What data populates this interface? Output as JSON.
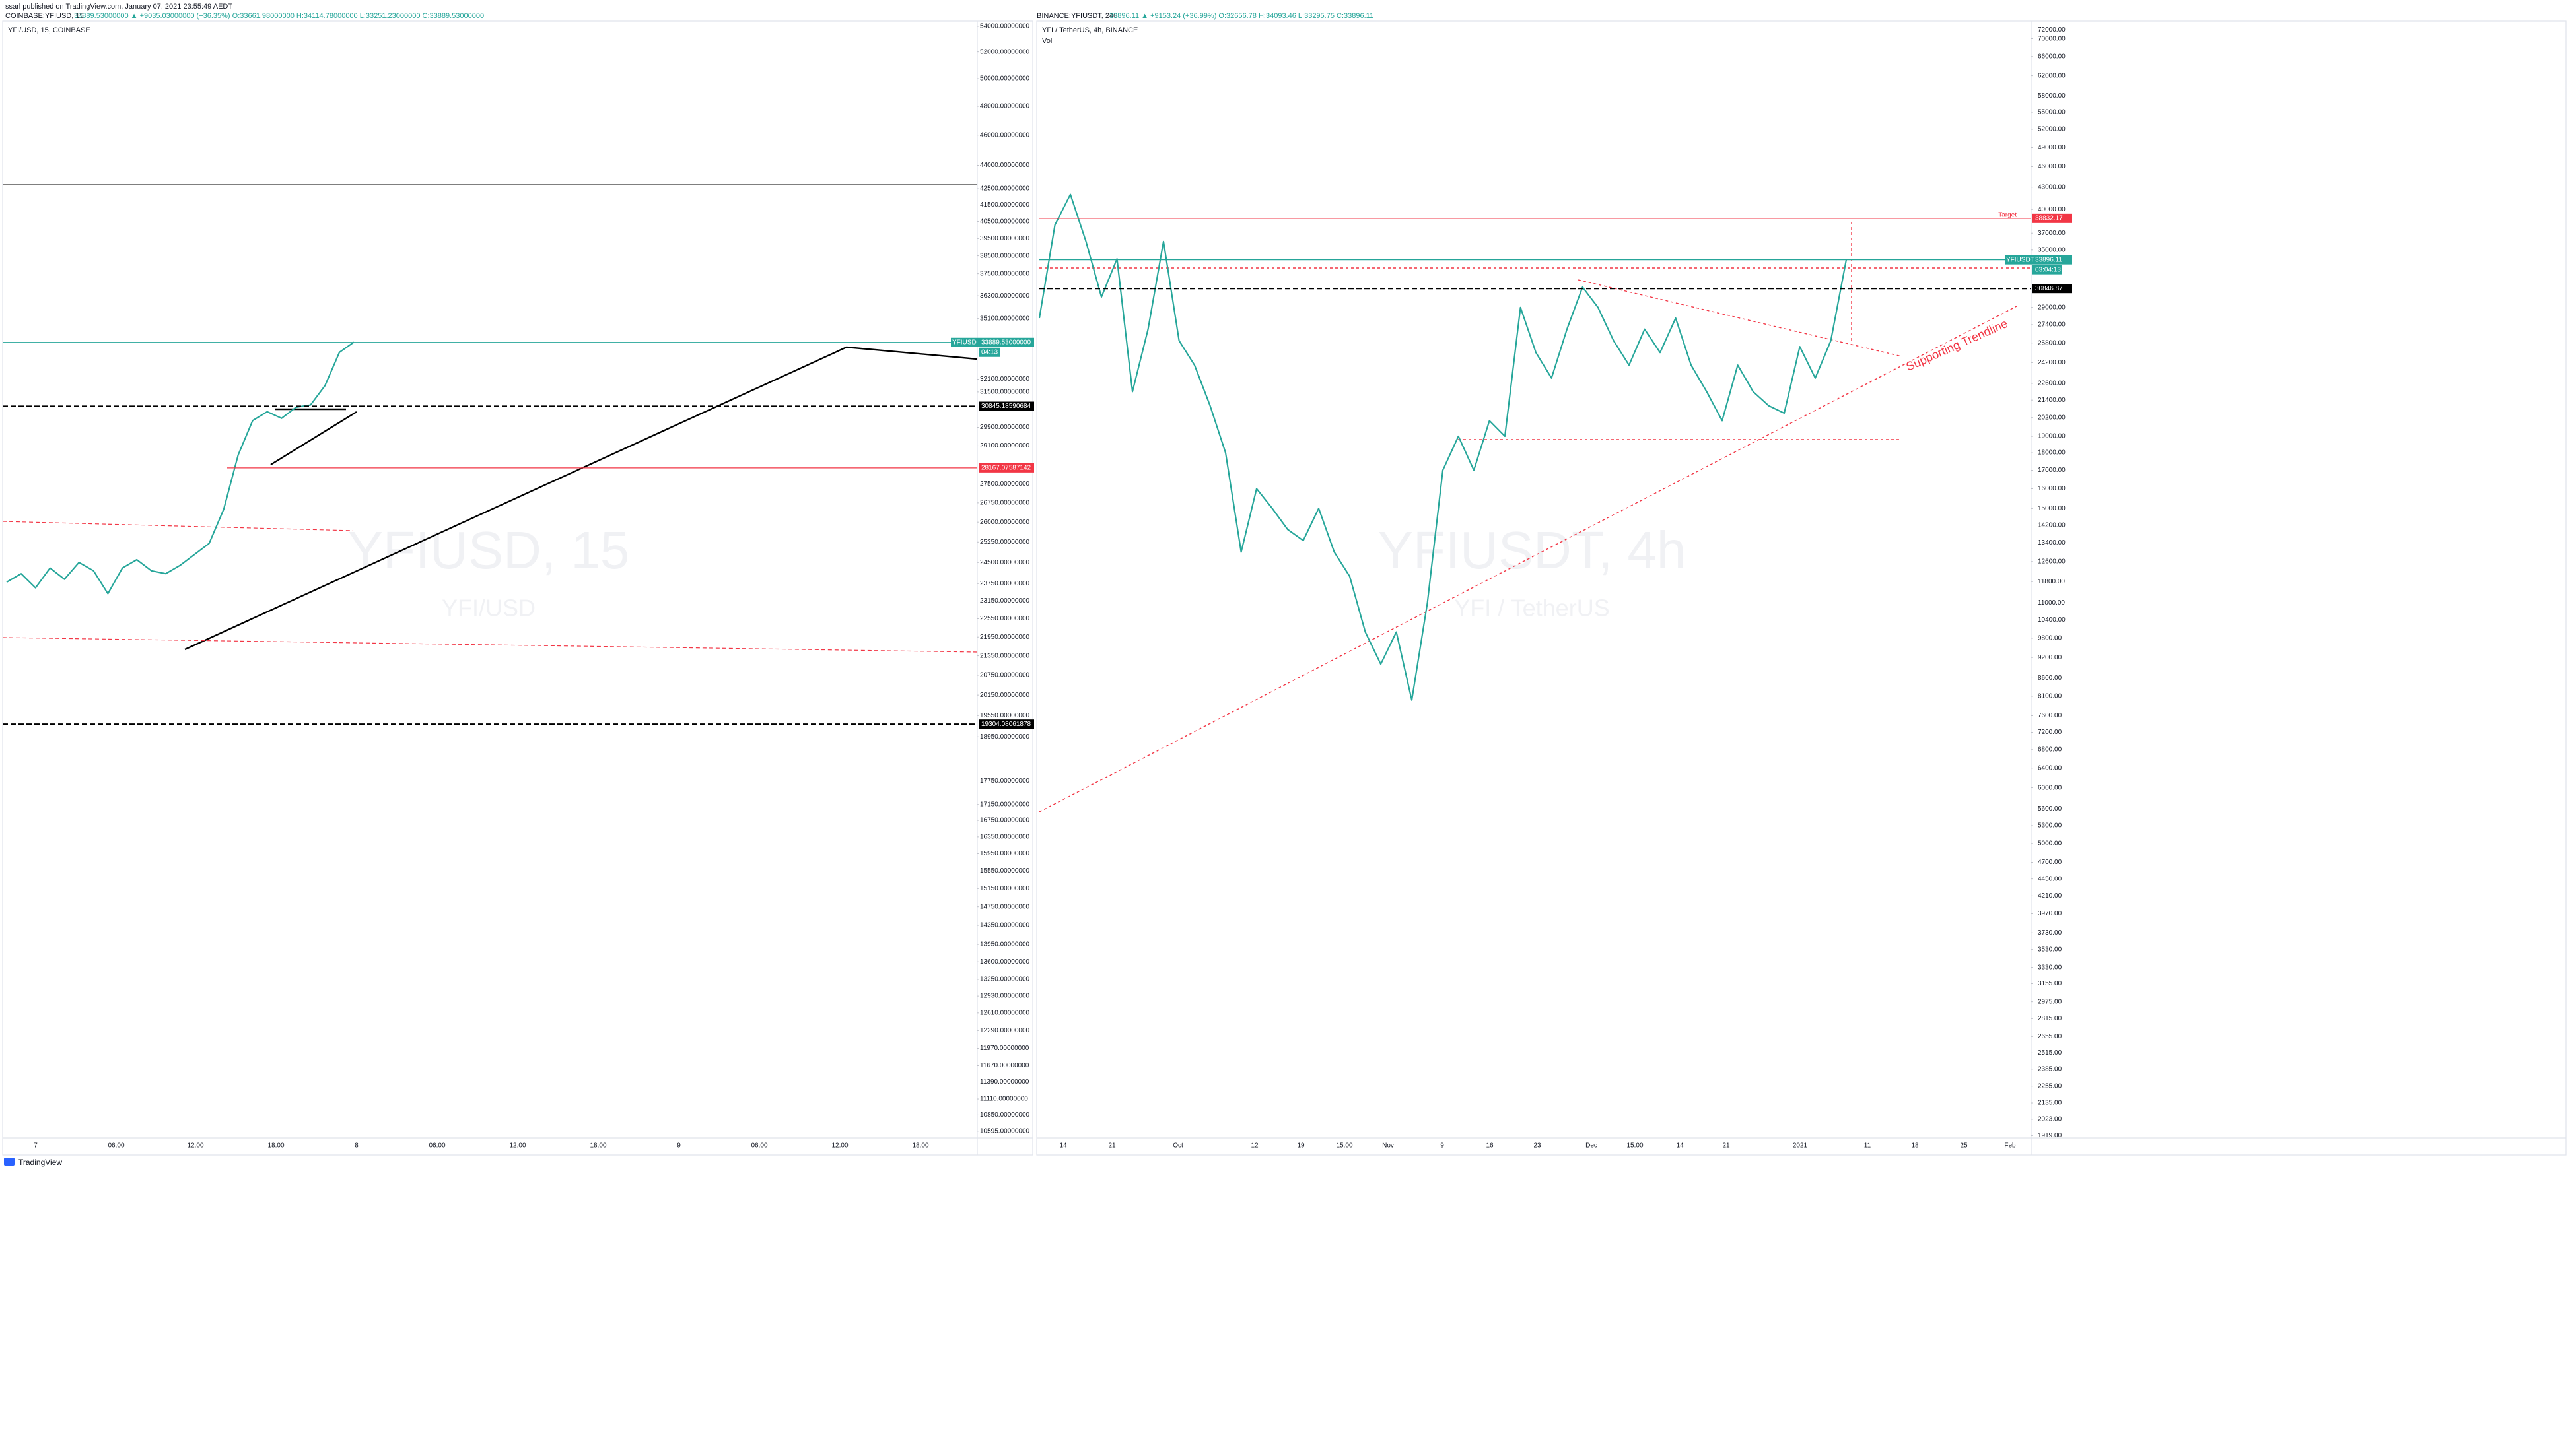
{
  "header": {
    "publisher": "ssarl published on TradingView.com, January 07, 2021 23:55:49 AEDT"
  },
  "left_panel": {
    "symbol": "COINBASE:YFIUSD, 15",
    "quote": "33889.53000000 ▲ +9035.03000000 (+36.35%) O:33661.98000000 H:34114.78000000 L:33251.23000000 C:33889.53000000",
    "title": "YFI/USD, 15, COINBASE",
    "watermark": "YFIUSD, 15",
    "watermark_sub": "YFI/USD",
    "price_ticks": [
      {
        "value": 54000,
        "label": "54000.00000000"
      },
      {
        "value": 52000,
        "label": "52000.00000000"
      },
      {
        "value": 50000,
        "label": "50000.00000000"
      },
      {
        "value": 48000,
        "label": "48000.00000000"
      },
      {
        "value": 46000,
        "label": "46000.00000000"
      },
      {
        "value": 44000,
        "label": "44000.00000000"
      },
      {
        "value": 42500,
        "label": "42500.00000000"
      },
      {
        "value": 41500,
        "label": "41500.00000000"
      },
      {
        "value": 40500,
        "label": "40500.00000000"
      },
      {
        "value": 39500,
        "label": "39500.00000000"
      },
      {
        "value": 38500,
        "label": "38500.00000000"
      },
      {
        "value": 37500,
        "label": "37500.00000000"
      },
      {
        "value": 36300,
        "label": "36300.00000000"
      },
      {
        "value": 35100,
        "label": "35100.00000000"
      },
      {
        "value": 32100,
        "label": "32100.00000000"
      },
      {
        "value": 31500,
        "label": "31500.00000000"
      },
      {
        "value": 29900,
        "label": "29900.00000000"
      },
      {
        "value": 29100,
        "label": "29100.00000000"
      },
      {
        "value": 27500,
        "label": "27500.00000000"
      },
      {
        "value": 26750,
        "label": "26750.00000000"
      },
      {
        "value": 26000,
        "label": "26000.00000000"
      },
      {
        "value": 25250,
        "label": "25250.00000000"
      },
      {
        "value": 24500,
        "label": "24500.00000000"
      },
      {
        "value": 23750,
        "label": "23750.00000000"
      },
      {
        "value": 23150,
        "label": "23150.00000000"
      },
      {
        "value": 22550,
        "label": "22550.00000000"
      },
      {
        "value": 21950,
        "label": "21950.00000000"
      },
      {
        "value": 21350,
        "label": "21350.00000000"
      },
      {
        "value": 20750,
        "label": "20750.00000000"
      },
      {
        "value": 20150,
        "label": "20150.00000000"
      },
      {
        "value": 19550,
        "label": "19550.00000000"
      },
      {
        "value": 18950,
        "label": "18950.00000000"
      },
      {
        "value": 17750,
        "label": "17750.00000000"
      },
      {
        "value": 17150,
        "label": "17150.00000000"
      },
      {
        "value": 16750,
        "label": "16750.00000000"
      },
      {
        "value": 16350,
        "label": "16350.00000000"
      },
      {
        "value": 15950,
        "label": "15950.00000000"
      },
      {
        "value": 15550,
        "label": "15550.00000000"
      },
      {
        "value": 15150,
        "label": "15150.00000000"
      },
      {
        "value": 14750,
        "label": "14750.00000000"
      },
      {
        "value": 14350,
        "label": "14350.00000000"
      },
      {
        "value": 13950,
        "label": "13950.00000000"
      },
      {
        "value": 13600,
        "label": "13600.00000000"
      },
      {
        "value": 13250,
        "label": "13250.00000000"
      },
      {
        "value": 12930,
        "label": "12930.00000000"
      },
      {
        "value": 12610,
        "label": "12610.00000000"
      },
      {
        "value": 12290,
        "label": "12290.00000000"
      },
      {
        "value": 11970,
        "label": "11970.00000000"
      },
      {
        "value": 11670,
        "label": "11670.00000000"
      },
      {
        "value": 11390,
        "label": "11390.00000000"
      },
      {
        "value": 11110,
        "label": "11110.00000000"
      },
      {
        "value": 10850,
        "label": "10850.00000000"
      },
      {
        "value": 10595,
        "label": "10595.00000000"
      }
    ],
    "price_labels": [
      {
        "value": 33889.53,
        "label": "33889.53000000",
        "tag": "YFIUSD",
        "timer": "04:13",
        "color": "#26a69a"
      },
      {
        "value": 30845.18590684,
        "label": "30845.18590684",
        "color": "#000000"
      },
      {
        "value": 28167.07587142,
        "label": "28167.07587142",
        "color": "#f23645"
      },
      {
        "value": 19304.08061878,
        "label": "19304.08061878",
        "color": "#000000"
      }
    ],
    "time_ticks": [
      "7",
      "06:00",
      "12:00",
      "18:00",
      "8",
      "06:00",
      "12:00",
      "18:00",
      "9",
      "06:00",
      "12:00",
      "18:00"
    ],
    "closes": [
      23800,
      24100,
      23600,
      24300,
      23900,
      24500,
      24200,
      23400,
      24300,
      24600,
      24200,
      24100,
      24400,
      24800,
      25200,
      26500,
      28700,
      30200,
      30600,
      30300,
      30800,
      30900,
      31800,
      33400,
      33900
    ]
  },
  "right_panel": {
    "symbol": "BINANCE:YFIUSDT, 240",
    "quote": "33896.11 ▲ +9153.24 (+36.99%) O:32656.78 H:34093.46 L:33295.75 C:33896.11",
    "title": "YFI / TetherUS, 4h, BINANCE",
    "volume_label": "Vol",
    "watermark": "YFIUSDT, 4h",
    "watermark_sub": "YFI / TetherUS",
    "target": "Target",
    "trendline": "Supporting Trendline",
    "price_ticks": [
      {
        "value": 72000,
        "label": "72000.00"
      },
      {
        "value": 70000,
        "label": "70000.00"
      },
      {
        "value": 66000,
        "label": "66000.00"
      },
      {
        "value": 62000,
        "label": "62000.00"
      },
      {
        "value": 58000,
        "label": "58000.00"
      },
      {
        "value": 55000,
        "label": "55000.00"
      },
      {
        "value": 52000,
        "label": "52000.00"
      },
      {
        "value": 49000,
        "label": "49000.00"
      },
      {
        "value": 46000,
        "label": "46000.00"
      },
      {
        "value": 43000,
        "label": "43000.00"
      },
      {
        "value": 40000,
        "label": "40000.00"
      },
      {
        "value": 37000,
        "label": "37000.00"
      },
      {
        "value": 35000,
        "label": "35000.00"
      },
      {
        "value": 29000,
        "label": "29000.00"
      },
      {
        "value": 27400,
        "label": "27400.00"
      },
      {
        "value": 25800,
        "label": "25800.00"
      },
      {
        "value": 24200,
        "label": "24200.00"
      },
      {
        "value": 22600,
        "label": "22600.00"
      },
      {
        "value": 21400,
        "label": "21400.00"
      },
      {
        "value": 20200,
        "label": "20200.00"
      },
      {
        "value": 19000,
        "label": "19000.00"
      },
      {
        "value": 18000,
        "label": "18000.00"
      },
      {
        "value": 17000,
        "label": "17000.00"
      },
      {
        "value": 16000,
        "label": "16000.00"
      },
      {
        "value": 15000,
        "label": "15000.00"
      },
      {
        "value": 14200,
        "label": "14200.00"
      },
      {
        "value": 13400,
        "label": "13400.00"
      },
      {
        "value": 12600,
        "label": "12600.00"
      },
      {
        "value": 11800,
        "label": "11800.00"
      },
      {
        "value": 11000,
        "label": "11000.00"
      },
      {
        "value": 10400,
        "label": "10400.00"
      },
      {
        "value": 9800,
        "label": "9800.00"
      },
      {
        "value": 9200,
        "label": "9200.00"
      },
      {
        "value": 8600,
        "label": "8600.00"
      },
      {
        "value": 8100,
        "label": "8100.00"
      },
      {
        "value": 7600,
        "label": "7600.00"
      },
      {
        "value": 7200,
        "label": "7200.00"
      },
      {
        "value": 6800,
        "label": "6800.00"
      },
      {
        "value": 6400,
        "label": "6400.00"
      },
      {
        "value": 6000,
        "label": "6000.00"
      },
      {
        "value": 5600,
        "label": "5600.00"
      },
      {
        "value": 5300,
        "label": "5300.00"
      },
      {
        "value": 5000,
        "label": "5000.00"
      },
      {
        "value": 4700,
        "label": "4700.00"
      },
      {
        "value": 4450,
        "label": "4450.00"
      },
      {
        "value": 4210,
        "label": "4210.00"
      },
      {
        "value": 3970,
        "label": "3970.00"
      },
      {
        "value": 3730,
        "label": "3730.00"
      },
      {
        "value": 3530,
        "label": "3530.00"
      },
      {
        "value": 3330,
        "label": "3330.00"
      },
      {
        "value": 3155,
        "label": "3155.00"
      },
      {
        "value": 2975,
        "label": "2975.00"
      },
      {
        "value": 2815,
        "label": "2815.00"
      },
      {
        "value": 2655,
        "label": "2655.00"
      },
      {
        "value": 2515,
        "label": "2515.00"
      },
      {
        "value": 2385,
        "label": "2385.00"
      },
      {
        "value": 2255,
        "label": "2255.00"
      },
      {
        "value": 2135,
        "label": "2135.00"
      },
      {
        "value": 2023,
        "label": "2023.00"
      },
      {
        "value": 1919,
        "label": "1919.00"
      }
    ],
    "price_labels": [
      {
        "value": 38832.17,
        "label": "38832.17",
        "color": "#f23645"
      },
      {
        "value": 33896.11,
        "label": "33896.11",
        "tag": "YFIUSDT",
        "timer": "03:04:13",
        "color": "#26a69a"
      },
      {
        "value": 30846.87,
        "label": "30846.87",
        "color": "#000000"
      }
    ],
    "time_ticks": [
      "14",
      "21",
      "Oct",
      "12",
      "19",
      "15:00",
      "Nov",
      "9",
      "16",
      "23",
      "Dec",
      "15:00",
      "14",
      "21",
      "2021",
      "11",
      "18",
      "25",
      "Feb"
    ],
    "closes": [
      28000,
      38000,
      42000,
      36000,
      30000,
      34000,
      22000,
      27000,
      36000,
      26000,
      24000,
      21000,
      18000,
      13000,
      16000,
      15000,
      14000,
      13500,
      15000,
      13000,
      12000,
      10000,
      9000,
      10000,
      8000,
      11000,
      17000,
      19000,
      17000,
      20000,
      19000,
      29000,
      25000,
      23000,
      27000,
      31000,
      29000,
      26000,
      24000,
      27000,
      25000,
      28000,
      24000,
      22000,
      20000,
      24000,
      22000,
      21000,
      20500,
      25500,
      23000,
      26000,
      33896
    ]
  },
  "footer": {
    "brand": "TradingView"
  }
}
